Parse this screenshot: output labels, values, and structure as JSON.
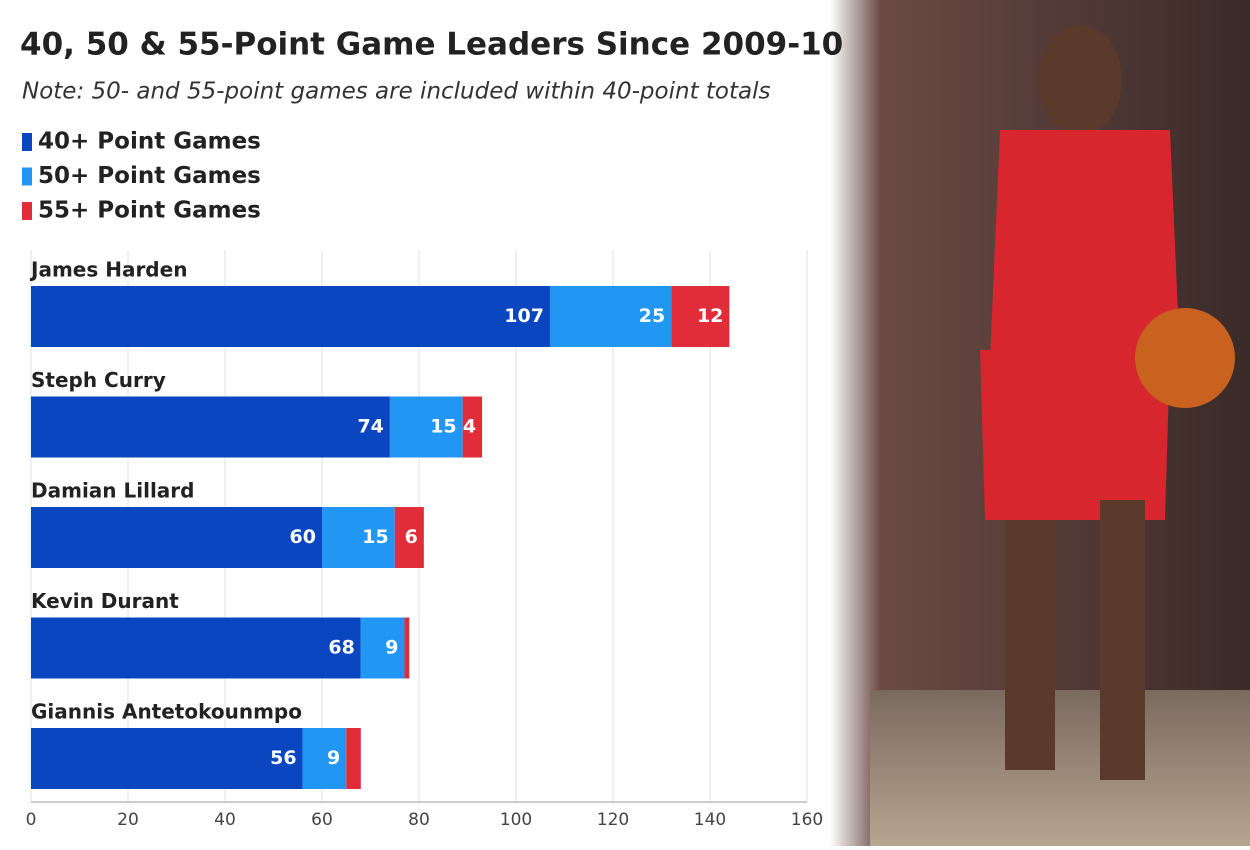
{
  "chart_data": {
    "type": "stacked-bar-horizontal",
    "title": "40, 50 & 55-Point Game Leaders Since 2009-10",
    "subtitle": "Note: 50- and 55-point games are included within 40-point totals",
    "categories": [
      "James Harden",
      "Steph Curry",
      "Damian Lillard",
      "Kevin Durant",
      "Giannis Antetokounmpo"
    ],
    "series": [
      {
        "name": "40+ Point Games",
        "color": "#0b46c1",
        "values": [
          107,
          74,
          60,
          68,
          56
        ]
      },
      {
        "name": "50+ Point Games",
        "color": "#2196f3",
        "values": [
          25,
          15,
          15,
          9,
          9
        ]
      },
      {
        "name": "55+ Point Games",
        "color": "#e12d39",
        "values": [
          12,
          4,
          6,
          1,
          3
        ]
      }
    ],
    "xlim": [
      0,
      160
    ],
    "xticks": [
      0,
      20,
      40,
      60,
      80,
      100,
      120,
      140,
      160
    ],
    "grid": true
  }
}
